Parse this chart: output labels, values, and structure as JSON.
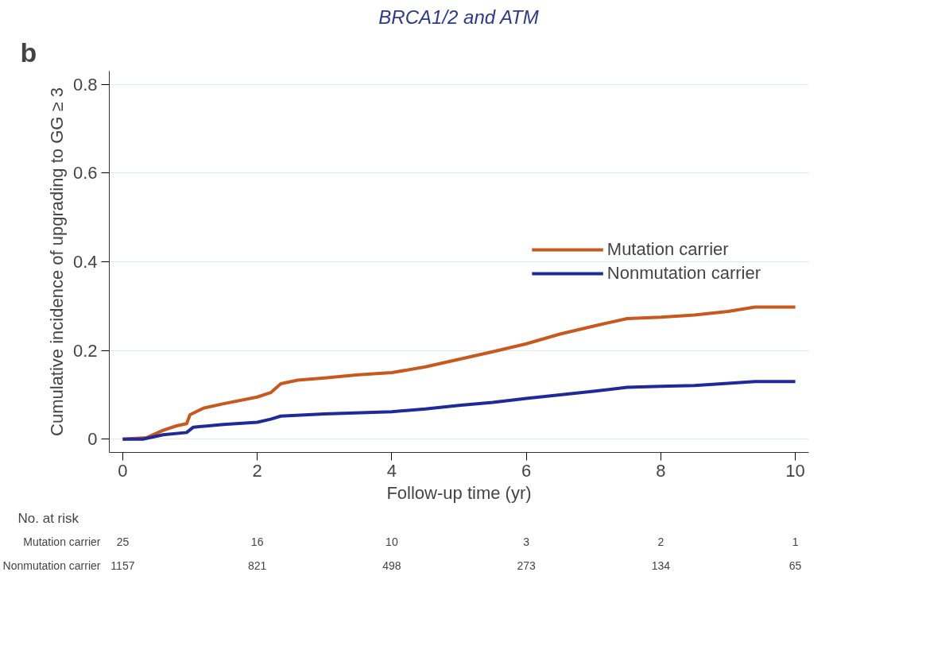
{
  "chart_data": {
    "type": "line",
    "title": "BRCA1/2 and ATM",
    "xlabel": "Follow-up time (yr)",
    "ylabel": "Cumulative incidence of upgrading to GG ≥ 3",
    "xlim": [
      -0.2,
      10.2
    ],
    "ylim": [
      -0.03,
      0.83
    ],
    "xticks": [
      0,
      2,
      4,
      6,
      8,
      10
    ],
    "yticks": [
      0,
      0.2,
      0.4,
      0.6,
      0.8
    ],
    "grid": "y",
    "legend": "right",
    "line_style": "solid",
    "series": [
      {
        "name": "Mutation carrier",
        "color": "#c8581c",
        "x": [
          0,
          0.35,
          0.6,
          0.8,
          0.95,
          1.0,
          1.2,
          1.5,
          2.0,
          2.2,
          2.35,
          2.6,
          3.0,
          3.5,
          4.0,
          4.5,
          5.0,
          5.5,
          6.0,
          6.5,
          7.0,
          7.5,
          8.0,
          8.5,
          9.0,
          9.4,
          10.0
        ],
        "values": [
          0,
          0.003,
          0.02,
          0.03,
          0.035,
          0.055,
          0.07,
          0.08,
          0.095,
          0.105,
          0.125,
          0.133,
          0.138,
          0.145,
          0.15,
          0.163,
          0.18,
          0.197,
          0.215,
          0.237,
          0.255,
          0.272,
          0.275,
          0.28,
          0.288,
          0.298,
          0.298
        ]
      },
      {
        "name": "Nonmutation carrier",
        "color": "#1f2a9a",
        "x": [
          0,
          0.3,
          0.6,
          0.95,
          1.05,
          1.5,
          2.0,
          2.2,
          2.35,
          3.0,
          4.0,
          4.5,
          5.0,
          5.5,
          6.0,
          6.5,
          7.0,
          7.5,
          8.0,
          8.5,
          9.0,
          9.4,
          10.0
        ],
        "values": [
          0,
          0.0,
          0.01,
          0.015,
          0.027,
          0.033,
          0.038,
          0.045,
          0.052,
          0.057,
          0.062,
          0.068,
          0.076,
          0.083,
          0.092,
          0.1,
          0.108,
          0.117,
          0.119,
          0.121,
          0.126,
          0.13,
          0.13
        ]
      }
    ],
    "annotations": [
      "b",
      "No. at risk",
      "Mutation carrier",
      "25",
      "16",
      "10",
      "3",
      "2",
      "1",
      "Nonmutation carrier",
      "1157",
      "821",
      "498",
      "273",
      "134",
      "65"
    ]
  }
}
